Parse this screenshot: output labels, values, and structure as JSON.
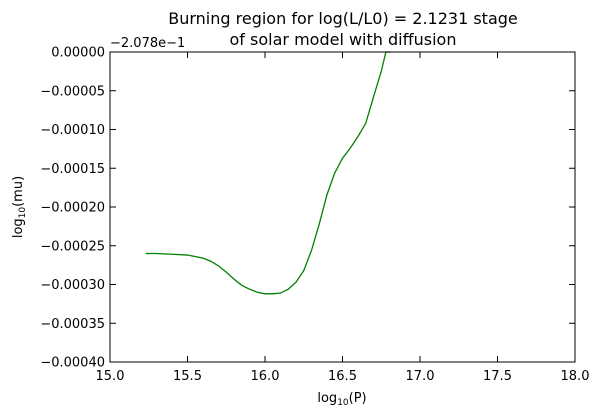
{
  "chart_data": {
    "type": "line",
    "title_lines": [
      "Burning region for log(L/L0) = 2.1231 stage",
      "of solar model with diffusion"
    ],
    "xlabel": {
      "base": "log",
      "sub": "10",
      "rest": "(P)"
    },
    "ylabel": {
      "base": "log",
      "sub": "10",
      "rest": "(mu)"
    },
    "y_offset_label": "−2.078e−1",
    "xlim": [
      15.0,
      18.0
    ],
    "ylim": [
      -0.0004,
      0.0
    ],
    "x_ticks": [
      15.0,
      15.5,
      16.0,
      16.5,
      17.0,
      17.5,
      18.0
    ],
    "x_tick_labels": [
      "15.0",
      "15.5",
      "16.0",
      "16.5",
      "17.0",
      "17.5",
      "18.0"
    ],
    "y_ticks": [
      0.0,
      -5e-05,
      -0.0001,
      -0.00015,
      -0.0002,
      -0.00025,
      -0.0003,
      -0.00035,
      -0.0004
    ],
    "y_tick_labels": [
      "0.00000",
      "−0.00005",
      "−0.00010",
      "−0.00015",
      "−0.00020",
      "−0.00025",
      "−0.00030",
      "−0.00035",
      "−0.00040"
    ],
    "grid": false,
    "series": [
      {
        "color": "#008000",
        "x": [
          15.23,
          15.3,
          15.4,
          15.5,
          15.6,
          15.65,
          15.7,
          15.75,
          15.8,
          15.85,
          15.9,
          15.95,
          16.0,
          16.05,
          16.1,
          16.15,
          16.2,
          16.25,
          16.3,
          16.35,
          16.4,
          16.45,
          16.5,
          16.55,
          16.6,
          16.65,
          16.7,
          16.75,
          16.78,
          16.81
        ],
        "y": [
          -0.00026,
          -0.00026,
          -0.000261,
          -0.000262,
          -0.000266,
          -0.00027,
          -0.000276,
          -0.000284,
          -0.000293,
          -0.000301,
          -0.000306,
          -0.00031,
          -0.000312,
          -0.000312,
          -0.000311,
          -0.000306,
          -0.000297,
          -0.000282,
          -0.000256,
          -0.000222,
          -0.000184,
          -0.000156,
          -0.000137,
          -0.000124,
          -0.000109,
          -9.2e-05,
          -5.8e-05,
          -2.5e-05,
          0.0,
          0.0
        ]
      }
    ]
  }
}
